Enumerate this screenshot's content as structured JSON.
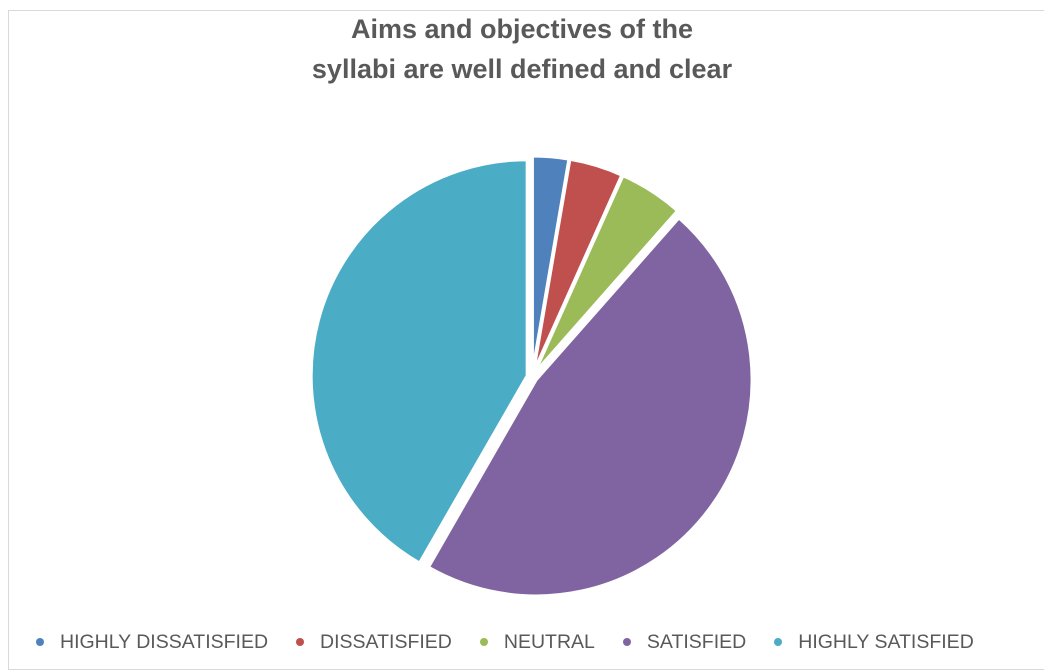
{
  "chart_data": {
    "type": "pie",
    "title": "Aims and objectives of the syllabi are well defined and clear",
    "title_lines": [
      "Aims and objectives of the",
      "syllabi are well defined and clear"
    ],
    "categories": [
      "HIGHLY DISSATISFIED",
      "DISSATISFIED",
      "NEUTRAL",
      "SATISFIED",
      "HIGHLY SATISFIED"
    ],
    "values": [
      2.7,
      4.0,
      4.8,
      46.8,
      41.7
    ],
    "colors": [
      "#4F81BD",
      "#C0504D",
      "#9BBB59",
      "#8064A2",
      "#4BACC6"
    ],
    "legend_position": "bottom",
    "data_labels": false
  }
}
